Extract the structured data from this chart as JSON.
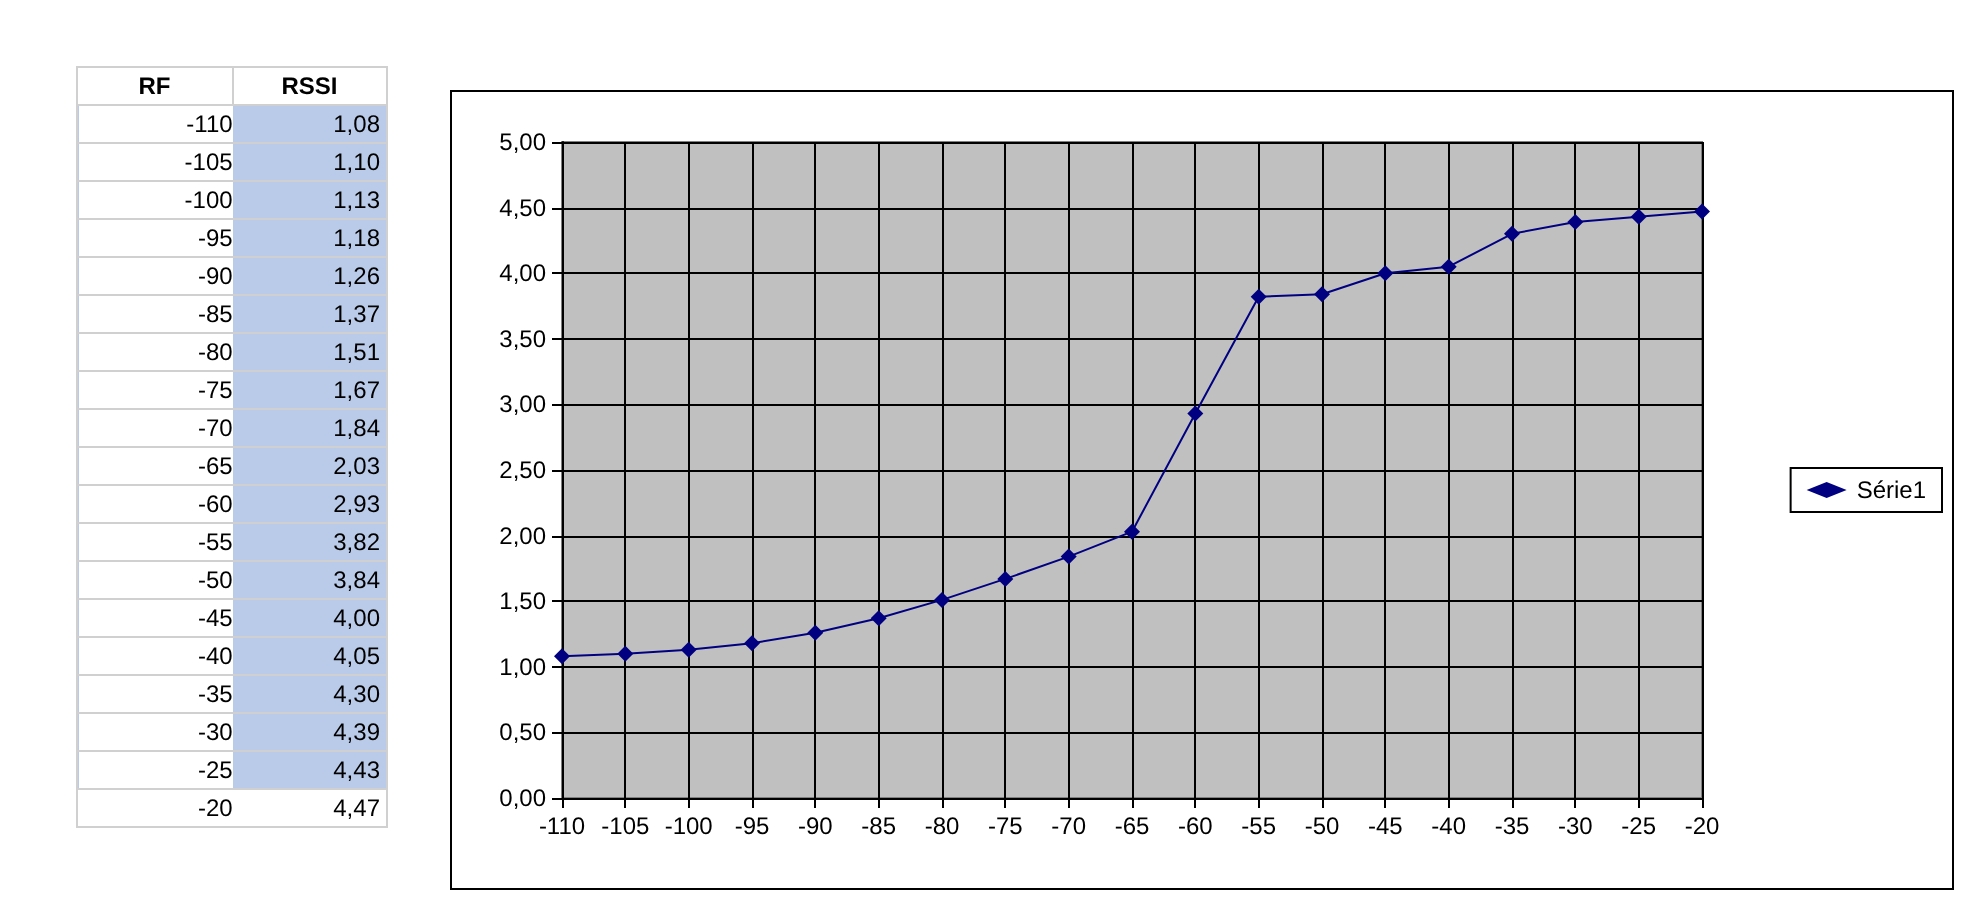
{
  "chart_data": [
    {
      "type": "other",
      "annotations": [
        "RF",
        "RSSI",
        "-110 1,08",
        "-105 1,10",
        "-100 1,13",
        "-95 1,18",
        "-90 1,26",
        "-85 1,37",
        "-80 1,51",
        "-75 1,67",
        "-70 1,84",
        "-65 2,03",
        "-60 2,93",
        "-55 3,82",
        "-50 3,84",
        "-45 4,00",
        "-40 4,05",
        "-35 4,30",
        "-30 4,39",
        "-25 4,43",
        "-20 4,47"
      ]
    },
    {
      "type": "line",
      "x": [
        -110,
        -105,
        -100,
        -95,
        -90,
        -85,
        -80,
        -75,
        -70,
        -65,
        -60,
        -55,
        -50,
        -45,
        -40,
        -35,
        -30,
        -25,
        -20
      ],
      "series": [
        {
          "name": "Série1",
          "color": "#000080",
          "values": [
            1.08,
            1.1,
            1.13,
            1.18,
            1.26,
            1.37,
            1.51,
            1.67,
            1.84,
            2.03,
            2.93,
            3.82,
            3.84,
            4.0,
            4.05,
            4.3,
            4.39,
            4.43,
            4.47
          ]
        }
      ],
      "xlim": [
        -110,
        -20
      ],
      "xticks": [
        -110,
        -105,
        -100,
        -95,
        -90,
        -85,
        -80,
        -75,
        -70,
        -65,
        -60,
        -55,
        -50,
        -45,
        -40,
        -35,
        -30,
        -25,
        -20
      ],
      "ylim": [
        0,
        5
      ],
      "yticks": [
        {
          "value": 0,
          "label": "0,00"
        },
        {
          "value": 0.5,
          "label": "0,50"
        },
        {
          "value": 1,
          "label": "1,00"
        },
        {
          "value": 1.5,
          "label": "1,50"
        },
        {
          "value": 2,
          "label": "2,00"
        },
        {
          "value": 2.5,
          "label": "2,50"
        },
        {
          "value": 3,
          "label": "3,00"
        },
        {
          "value": 3.5,
          "label": "3,50"
        },
        {
          "value": 4,
          "label": "4,00"
        },
        {
          "value": 4.5,
          "label": "4,50"
        },
        {
          "value": 5,
          "label": "5,00"
        }
      ],
      "grid": true,
      "legend": "right",
      "marker": "diamond",
      "line_style": "solid"
    }
  ]
}
